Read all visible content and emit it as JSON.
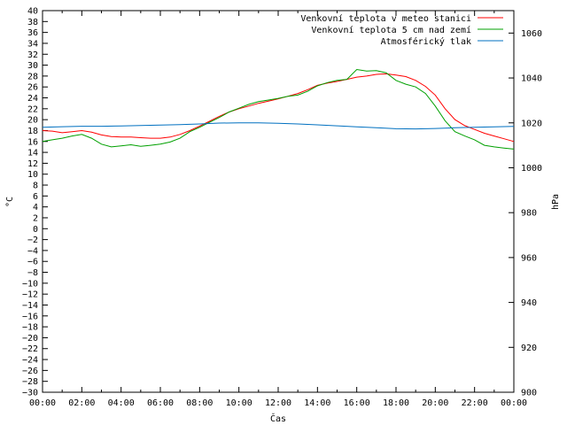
{
  "chart_data": {
    "type": "line",
    "xlabel": "Čas",
    "ylabel_left": "°C",
    "ylabel_right": "hPa",
    "xlim": [
      0,
      24
    ],
    "ylim_left": [
      -30,
      40
    ],
    "ylim_right": [
      900,
      1070
    ],
    "x_ticks": [
      "00:00",
      "02:00",
      "04:00",
      "06:00",
      "08:00",
      "10:00",
      "12:00",
      "14:00",
      "16:00",
      "18:00",
      "20:00",
      "22:00",
      "00:00"
    ],
    "y_left_ticks": [
      40,
      38,
      36,
      34,
      32,
      30,
      28,
      26,
      24,
      22,
      20,
      18,
      16,
      14,
      12,
      10,
      8,
      6,
      4,
      2,
      0,
      -2,
      -4,
      -6,
      -8,
      -10,
      -12,
      -14,
      -16,
      -18,
      -20,
      -22,
      -24,
      -26,
      -28,
      -30
    ],
    "y_right_ticks": [
      1060,
      1040,
      1020,
      1000,
      980,
      960,
      940,
      920,
      900
    ],
    "grid": false,
    "legend_position": "top-right",
    "series": [
      {
        "name": "Venkovní teplota v meteo stanici",
        "color": "#ff0000",
        "axis": "left",
        "x": [
          0,
          0.5,
          1,
          1.5,
          2,
          2.5,
          3,
          3.5,
          4,
          4.5,
          5,
          5.5,
          6,
          6.5,
          7,
          7.5,
          8,
          8.5,
          9,
          9.5,
          10,
          10.5,
          11,
          11.5,
          12,
          12.5,
          13,
          13.5,
          14,
          14.5,
          15,
          15.5,
          16,
          16.5,
          17,
          17.5,
          18,
          18.5,
          19,
          19.5,
          20,
          20.5,
          21,
          21.5,
          22,
          22.5,
          23,
          23.5,
          24
        ],
        "y": [
          18.0,
          17.9,
          17.6,
          17.8,
          18.0,
          17.7,
          17.2,
          16.9,
          16.8,
          16.8,
          16.7,
          16.6,
          16.6,
          16.8,
          17.3,
          18.0,
          18.8,
          19.7,
          20.6,
          21.4,
          22.0,
          22.5,
          23.0,
          23.4,
          23.8,
          24.3,
          24.8,
          25.5,
          26.3,
          26.7,
          27.0,
          27.4,
          27.8,
          28.0,
          28.3,
          28.4,
          28.2,
          27.9,
          27.2,
          26.1,
          24.5,
          22.0,
          20.0,
          18.9,
          18.2,
          17.5,
          17.0,
          16.5,
          16.0
        ]
      },
      {
        "name": "Venkovní teplota 5 cm nad zemí",
        "color": "#00a000",
        "axis": "left",
        "x": [
          0,
          0.5,
          1,
          1.5,
          2,
          2.5,
          3,
          3.5,
          4,
          4.5,
          5,
          5.5,
          6,
          6.5,
          7,
          7.5,
          8,
          8.5,
          9,
          9.5,
          10,
          10.5,
          11,
          11.5,
          12,
          12.5,
          13,
          13.5,
          14,
          14.5,
          15,
          15.5,
          16,
          16.5,
          17,
          17.5,
          18,
          18.5,
          19,
          19.5,
          20,
          20.5,
          21,
          21.5,
          22,
          22.5,
          23,
          23.5,
          24
        ],
        "y": [
          16.0,
          16.3,
          16.6,
          17.0,
          17.3,
          16.6,
          15.5,
          15.0,
          15.2,
          15.4,
          15.1,
          15.3,
          15.5,
          15.9,
          16.6,
          17.8,
          18.6,
          19.5,
          20.4,
          21.4,
          22.1,
          22.8,
          23.3,
          23.6,
          23.9,
          24.3,
          24.5,
          25.2,
          26.2,
          26.8,
          27.2,
          27.4,
          29.2,
          28.9,
          29.0,
          28.6,
          27.2,
          26.5,
          26.0,
          24.8,
          22.5,
          19.8,
          17.8,
          17.0,
          16.3,
          15.3,
          15.0,
          14.8,
          14.6
        ]
      },
      {
        "name": "Atmosférický tlak",
        "color": "#0070c0",
        "axis": "right",
        "x": [
          0,
          1,
          2,
          3,
          4,
          5,
          6,
          7,
          8,
          9,
          10,
          11,
          12,
          13,
          14,
          15,
          16,
          17,
          18,
          19,
          20,
          21,
          22,
          23,
          24
        ],
        "y": [
          1018.0,
          1018.3,
          1018.5,
          1018.5,
          1018.6,
          1018.8,
          1019.0,
          1019.2,
          1019.5,
          1019.9,
          1020.0,
          1020.0,
          1019.8,
          1019.5,
          1019.1,
          1018.7,
          1018.2,
          1017.8,
          1017.4,
          1017.3,
          1017.5,
          1017.8,
          1018.0,
          1018.2,
          1018.4
        ]
      }
    ]
  }
}
